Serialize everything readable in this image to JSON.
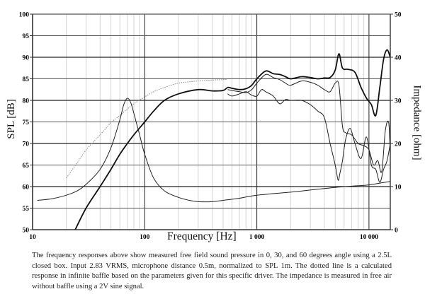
{
  "chart_data": {
    "type": "line",
    "title": "",
    "xlabel": "Frequency [Hz]",
    "ylabel": "SPL [dB]",
    "y2label": "Impedance [ohm]",
    "xscale": "log",
    "xlim": [
      10,
      15500
    ],
    "ylim": [
      50,
      100
    ],
    "y2lim": [
      0,
      50
    ],
    "grid": true,
    "x_ticks": [
      {
        "value": 10,
        "label": "10"
      },
      {
        "value": 100,
        "label": "100"
      },
      {
        "value": 1000,
        "label": "1 000"
      },
      {
        "value": 10000,
        "label": "10 000"
      }
    ],
    "y_ticks": [
      50,
      55,
      60,
      65,
      70,
      75,
      80,
      85,
      90,
      95,
      100
    ],
    "y2_ticks": [
      0,
      10,
      20,
      30,
      40,
      50
    ],
    "series": [
      {
        "name": "SPL 0 degrees",
        "axis": "left",
        "style": "thick",
        "x": [
          24,
          30,
          40,
          50,
          60,
          70,
          80,
          100,
          120,
          150,
          200,
          300,
          400,
          500,
          550,
          600,
          700,
          800,
          900,
          1000,
          1200,
          1400,
          1600,
          1800,
          2000,
          2500,
          3000,
          3500,
          4000,
          4500,
          5000,
          5400,
          5800,
          6500,
          7500,
          8500,
          9500,
          10500,
          11500,
          12500,
          13500,
          14500,
          15500
        ],
        "values": [
          50,
          55,
          60,
          64,
          67.5,
          70,
          72,
          75,
          77.5,
          80,
          81.5,
          82.5,
          82.2,
          82.3,
          83,
          82.8,
          82.5,
          82.7,
          83.5,
          85,
          86.8,
          86.2,
          86,
          85.5,
          85,
          85.5,
          85.3,
          85,
          85.2,
          85.3,
          87,
          90.8,
          87.5,
          87.2,
          86.5,
          83,
          80.5,
          79,
          76.5,
          83,
          89.5,
          91.7,
          90
        ]
      },
      {
        "name": "SPL 30 degrees",
        "axis": "left",
        "style": "thin",
        "x": [
          550,
          600,
          700,
          800,
          900,
          1000,
          1200,
          1400,
          1600,
          1800,
          2000,
          2500,
          3000,
          3500,
          4000,
          4500,
          5000,
          5400,
          5800,
          6200,
          7000,
          8000,
          9000,
          10000,
          11000,
          12000,
          13000,
          14000,
          15000,
          15500
        ],
        "values": [
          82.5,
          82.3,
          82,
          81.8,
          82.5,
          84,
          86,
          85.3,
          84.8,
          84,
          83.5,
          84.5,
          84.2,
          83.5,
          82.5,
          82,
          84,
          83.5,
          74,
          72.5,
          72,
          70,
          69.5,
          68.5,
          65,
          66,
          63.5,
          73,
          74.8,
          67
        ]
      },
      {
        "name": "SPL 60 degrees",
        "axis": "left",
        "style": "thin",
        "x": [
          550,
          600,
          700,
          800,
          900,
          1000,
          1100,
          1200,
          1400,
          1600,
          1800,
          2000,
          2500,
          3000,
          3500,
          4000,
          4500,
          5000,
          5300,
          5500,
          5800,
          6200,
          6800,
          7500,
          8500,
          9500,
          10500,
          11500,
          12500,
          13500,
          14500,
          15500
        ],
        "values": [
          81.5,
          81,
          81.5,
          82,
          81.2,
          81,
          82.5,
          82,
          81,
          79.2,
          80.2,
          80,
          80,
          79,
          77.5,
          76,
          70,
          65,
          61.5,
          63,
          66,
          71,
          73.5,
          70,
          66.5,
          71.5,
          65,
          64,
          61,
          64,
          66,
          70
        ]
      },
      {
        "name": "Calculated infinite baffle (dotted)",
        "axis": "left",
        "style": "dotted",
        "x": [
          20,
          25,
          30,
          40,
          50,
          60,
          70,
          80,
          100,
          120,
          150,
          200,
          250,
          300,
          400,
          500,
          550
        ],
        "values": [
          62,
          65.5,
          68.5,
          72,
          74.8,
          76.5,
          78,
          79.2,
          80.8,
          82,
          83,
          84,
          84.3,
          84.5,
          84.7,
          84.8,
          84.9
        ]
      },
      {
        "name": "Impedance",
        "axis": "right",
        "style": "thin",
        "x": [
          11,
          15,
          20,
          25,
          30,
          40,
          50,
          60,
          65,
          70,
          75,
          80,
          90,
          100,
          120,
          150,
          200,
          250,
          300,
          400,
          500,
          700,
          1000,
          2000,
          3000,
          5000,
          8000,
          10000,
          15500
        ],
        "values": [
          6.8,
          7.2,
          8,
          9,
          10.5,
          14,
          19,
          25.5,
          29,
          30.5,
          29.5,
          27,
          22,
          17.5,
          12,
          9,
          7.5,
          6.8,
          6.5,
          6.5,
          6.8,
          7.3,
          8,
          8.7,
          9.2,
          9.8,
          10.2,
          10.4,
          11.2
        ]
      }
    ]
  },
  "axes": {
    "left_label": "SPL [dB]",
    "right_label": "Impedance [ohm]",
    "x_label": "Frequency [Hz]"
  },
  "caption": "The frequency responses above show measured free field sound pressure in 0, 30, and 60 degrees angle using a 2.5L closed box. Input 2.83 VRMS, microphone distance 0.5m, normalized to SPL 1m. The dotted line is a calculated response in infinite baffle based on the parameters given for this specific driver. The impedance is measured in free air without baffle using a 2V sine signal."
}
